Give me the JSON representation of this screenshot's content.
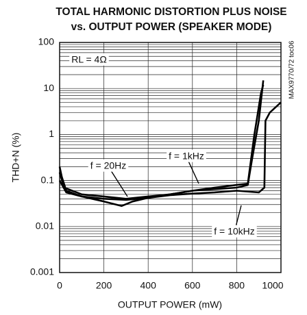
{
  "chart_data": {
    "type": "line",
    "title": "TOTAL HARMONIC DISTORTION PLUS NOISE",
    "subtitle": "vs. OUTPUT POWER (SPEAKER MODE)",
    "x_label": "OUTPUT POWER (mW)",
    "y_label": "THD+N (%)",
    "annotations": [
      "RL = 4Ω",
      "MAX9770/72 toc06"
    ],
    "log_y": true,
    "grid": true,
    "xlim": [
      0,
      1000
    ],
    "xticks": [
      0,
      200,
      400,
      600,
      800,
      1000
    ],
    "ylim": [
      0.001,
      100
    ],
    "yticks": [
      0.001,
      0.01,
      0.1,
      1,
      10,
      100
    ],
    "series": [
      {
        "name": "f = 20Hz",
        "color": "#000000",
        "x": [
          0,
          10,
          30,
          100,
          200,
          280,
          330,
          400,
          500,
          600,
          700,
          800,
          850,
          870,
          900,
          920
        ],
        "values": [
          0.2,
          0.12,
          0.06,
          0.045,
          0.035,
          0.028,
          0.035,
          0.042,
          0.05,
          0.06,
          0.065,
          0.07,
          0.08,
          0.3,
          2,
          15
        ]
      },
      {
        "name": "f = 1kHz",
        "color": "#000000",
        "x": [
          0,
          20,
          100,
          200,
          300,
          400,
          500,
          600,
          700,
          800,
          850,
          880,
          910,
          920
        ],
        "values": [
          0.15,
          0.07,
          0.05,
          0.045,
          0.04,
          0.045,
          0.05,
          0.06,
          0.07,
          0.08,
          0.085,
          1,
          8,
          12
        ]
      },
      {
        "name": "f = 10kHz",
        "color": "#000000",
        "x": [
          0,
          30,
          100,
          200,
          300,
          400,
          500,
          600,
          700,
          800,
          900,
          925,
          930,
          950,
          1000
        ],
        "values": [
          0.1,
          0.055,
          0.045,
          0.04,
          0.038,
          0.042,
          0.048,
          0.052,
          0.055,
          0.06,
          0.055,
          0.07,
          2,
          3,
          5
        ]
      }
    ]
  }
}
